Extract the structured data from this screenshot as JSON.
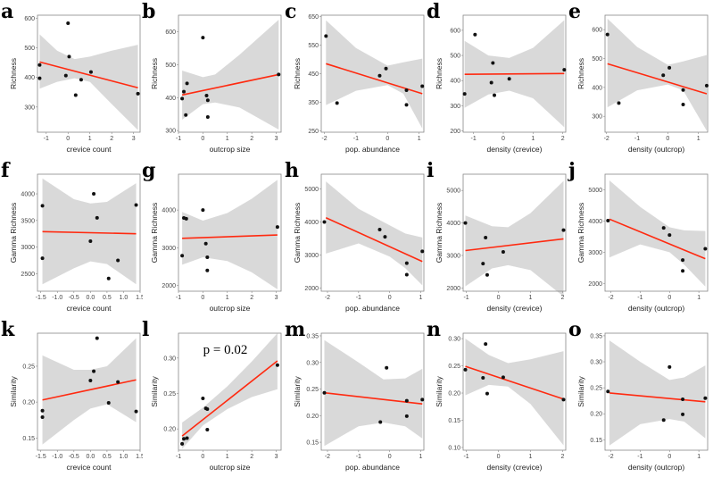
{
  "chart_data": [
    {
      "panel": "a",
      "type": "scatter",
      "xlabel": "crevice count",
      "ylabel": "Richness",
      "xlim": [
        -1.4,
        3.3
      ],
      "ylim": [
        215,
        610
      ],
      "xticks": [
        -1,
        0,
        1,
        2,
        3
      ],
      "yticks": [
        300,
        400,
        500,
        600
      ],
      "points": [
        [
          -1.3,
          442
        ],
        [
          -1.3,
          397
        ],
        [
          0,
          583
        ],
        [
          0.05,
          470
        ],
        [
          -0.1,
          406
        ],
        [
          0.35,
          340
        ],
        [
          0.6,
          392
        ],
        [
          1.05,
          418
        ],
        [
          3.2,
          345
        ]
      ],
      "fit": [
        [
          -1.3,
          452
        ],
        [
          3.2,
          365
        ]
      ],
      "ci": [
        [
          -1.3,
          362,
          545
        ],
        [
          -0.5,
          385,
          490
        ],
        [
          0.3,
          397,
          462
        ],
        [
          1,
          385,
          470
        ],
        [
          2,
          310,
          490
        ],
        [
          3.2,
          222,
          510
        ]
      ]
    },
    {
      "panel": "b",
      "type": "scatter",
      "xlabel": "outcrop size",
      "ylabel": "Richness",
      "xlim": [
        -1,
        3.2
      ],
      "ylim": [
        295,
        650
      ],
      "xticks": [
        -1,
        0,
        1,
        2,
        3
      ],
      "yticks": [
        300,
        400,
        500,
        600
      ],
      "points": [
        [
          -0.85,
          397
        ],
        [
          -0.78,
          418
        ],
        [
          -0.65,
          443
        ],
        [
          -0.7,
          347
        ],
        [
          0,
          582
        ],
        [
          0.15,
          406
        ],
        [
          0.2,
          392
        ],
        [
          0.2,
          341
        ],
        [
          3.1,
          470
        ]
      ],
      "fit": [
        [
          -0.85,
          408
        ],
        [
          3.1,
          470
        ]
      ],
      "ci": [
        [
          -0.85,
          333,
          482
        ],
        [
          0,
          380,
          462
        ],
        [
          0.5,
          385,
          470
        ],
        [
          1.5,
          370,
          530
        ],
        [
          3.1,
          303,
          636
        ]
      ]
    },
    {
      "panel": "c",
      "type": "scatter",
      "xlabel": "pop. abundance",
      "ylabel": "Richness",
      "xlim": [
        -2.1,
        1.15
      ],
      "ylim": [
        245,
        655
      ],
      "xticks": [
        -2,
        -1,
        0,
        1
      ],
      "yticks": [
        250,
        350,
        450,
        550,
        650
      ],
      "points": [
        [
          -1.95,
          582
        ],
        [
          -1.6,
          347
        ],
        [
          -0.25,
          443
        ],
        [
          -0.05,
          468
        ],
        [
          0.6,
          392
        ],
        [
          0.6,
          341
        ],
        [
          1.1,
          406
        ]
      ],
      "fit": [
        [
          -1.95,
          485
        ],
        [
          1.1,
          380
        ]
      ],
      "ci": [
        [
          -1.95,
          340,
          637
        ],
        [
          -1,
          390,
          540
        ],
        [
          0,
          410,
          478
        ],
        [
          0.5,
          380,
          490
        ],
        [
          1.1,
          258,
          503
        ]
      ]
    },
    {
      "panel": "d",
      "type": "scatter",
      "xlabel": "density (crevice)",
      "ylabel": "Richness",
      "xlim": [
        -1.35,
        2.1
      ],
      "ylim": [
        195,
        660
      ],
      "xticks": [
        -1,
        0,
        1,
        2
      ],
      "yticks": [
        200,
        300,
        400,
        500,
        600
      ],
      "points": [
        [
          -1.3,
          347
        ],
        [
          -0.95,
          583
        ],
        [
          -0.35,
          470
        ],
        [
          -0.4,
          392
        ],
        [
          -0.3,
          342
        ],
        [
          0.2,
          407
        ],
        [
          2.05,
          443
        ]
      ],
      "fit": [
        [
          -1.3,
          425
        ],
        [
          2.05,
          428
        ]
      ],
      "ci": [
        [
          -1.3,
          292,
          558
        ],
        [
          -0.5,
          345,
          500
        ],
        [
          0.2,
          360,
          490
        ],
        [
          1,
          330,
          530
        ],
        [
          2.05,
          215,
          640
        ]
      ]
    },
    {
      "panel": "e",
      "type": "scatter",
      "xlabel": "density (outcrop)",
      "ylabel": "Richness",
      "xlim": [
        -2.05,
        1.3
      ],
      "ylim": [
        245,
        650
      ],
      "xticks": [
        -2,
        -1,
        0,
        1
      ],
      "yticks": [
        300,
        400,
        500,
        600
      ],
      "points": [
        [
          -1.97,
          583
        ],
        [
          -1.6,
          346
        ],
        [
          -0.15,
          442
        ],
        [
          0.05,
          468
        ],
        [
          0.5,
          391
        ],
        [
          0.5,
          341
        ],
        [
          1.27,
          406
        ]
      ],
      "fit": [
        [
          -1.97,
          482
        ],
        [
          1.27,
          378
        ]
      ],
      "ci": [
        [
          -1.97,
          331,
          638
        ],
        [
          -1,
          390,
          540
        ],
        [
          0,
          410,
          478
        ],
        [
          0.5,
          390,
          490
        ],
        [
          1.27,
          250,
          512
        ]
      ]
    },
    {
      "panel": "f",
      "type": "scatter",
      "xlabel": "crevice count",
      "ylabel": "Gamma Richness",
      "xlim": [
        -1.6,
        1.5
      ],
      "ylim": [
        2170,
        4370
      ],
      "xticks": [
        -1.5,
        -1.0,
        -0.5,
        0.0,
        0.5,
        1.0,
        1.5
      ],
      "yticks": [
        2500,
        3000,
        3500,
        4000
      ],
      "points": [
        [
          -1.45,
          3775
        ],
        [
          -1.45,
          2790
        ],
        [
          0.1,
          4000
        ],
        [
          0.2,
          3550
        ],
        [
          0,
          3110
        ],
        [
          0.55,
          2410
        ],
        [
          0.83,
          2750
        ],
        [
          1.38,
          3790
        ]
      ],
      "fit": [
        [
          -1.45,
          3290
        ],
        [
          1.38,
          3250
        ]
      ],
      "ci": [
        [
          -1.45,
          2300,
          4290
        ],
        [
          -0.5,
          2600,
          3900
        ],
        [
          0,
          2730,
          3820
        ],
        [
          0.5,
          2680,
          3850
        ],
        [
          1.38,
          2300,
          4200
        ]
      ]
    },
    {
      "panel": "g",
      "type": "scatter",
      "xlabel": "outcrop size",
      "ylabel": "Gamma Richness",
      "xlim": [
        -1,
        3.2
      ],
      "ylim": [
        1850,
        4950
      ],
      "xticks": [
        -1,
        0,
        1,
        2,
        3
      ],
      "yticks": [
        2000,
        3000,
        4000
      ],
      "points": [
        [
          -0.85,
          2790
        ],
        [
          -0.78,
          3790
        ],
        [
          -0.68,
          3770
        ],
        [
          0,
          4000
        ],
        [
          0.12,
          3110
        ],
        [
          0.18,
          2750
        ],
        [
          0.18,
          2400
        ],
        [
          3.05,
          3550
        ]
      ],
      "fit": [
        [
          -0.85,
          3250
        ],
        [
          3.05,
          3340
        ]
      ],
      "ci": [
        [
          -0.85,
          2550,
          3950
        ],
        [
          0,
          2750,
          3720
        ],
        [
          1,
          2650,
          3920
        ],
        [
          2,
          2350,
          4300
        ],
        [
          3.05,
          1900,
          4800
        ]
      ]
    },
    {
      "panel": "h",
      "type": "scatter",
      "xlabel": "pop. abundance",
      "ylabel": "Gamma Richness",
      "xlim": [
        -2.2,
        1.1
      ],
      "ylim": [
        1900,
        5450
      ],
      "xticks": [
        -2,
        -1,
        0,
        1
      ],
      "yticks": [
        2000,
        3000,
        4000,
        5000
      ],
      "points": [
        [
          -2.1,
          4000
        ],
        [
          -0.32,
          3770
        ],
        [
          -0.15,
          3550
        ],
        [
          0.55,
          2750
        ],
        [
          0.55,
          2400
        ],
        [
          1.05,
          3110
        ]
      ],
      "fit": [
        [
          -2.05,
          4130
        ],
        [
          1.05,
          2800
        ]
      ],
      "ci": [
        [
          -2.05,
          3040,
          5230
        ],
        [
          -1,
          3350,
          4400
        ],
        [
          0,
          2950,
          3900
        ],
        [
          0.5,
          2600,
          3650
        ],
        [
          1.05,
          2080,
          3530
        ]
      ]
    },
    {
      "panel": "i",
      "type": "scatter",
      "xlabel": "density (crevice)",
      "ylabel": "Gamma Richness",
      "xlim": [
        -1.1,
        2.1
      ],
      "ylim": [
        1900,
        5500
      ],
      "xticks": [
        -1,
        0,
        1,
        2
      ],
      "yticks": [
        2000,
        3000,
        4000,
        5000
      ],
      "points": [
        [
          -1.03,
          4000
        ],
        [
          -0.48,
          2750
        ],
        [
          -0.4,
          3550
        ],
        [
          -0.35,
          2400
        ],
        [
          0.15,
          3110
        ],
        [
          2.03,
          3780
        ]
      ],
      "fit": [
        [
          -1.03,
          3150
        ],
        [
          2.03,
          3510
        ]
      ],
      "ci": [
        [
          -1.03,
          2050,
          4230
        ],
        [
          -0.2,
          2600,
          3900
        ],
        [
          0.3,
          2700,
          3870
        ],
        [
          1,
          2550,
          4300
        ],
        [
          2.03,
          1740,
          5290
        ]
      ]
    },
    {
      "panel": "j",
      "type": "scatter",
      "xlabel": "density (outcrop)",
      "ylabel": "Gamma Richness",
      "xlim": [
        -2.2,
        1.3
      ],
      "ylim": [
        1750,
        5500
      ],
      "xticks": [
        -2,
        -1,
        0,
        1
      ],
      "yticks": [
        2000,
        3000,
        4000,
        5000
      ],
      "points": [
        [
          -2.1,
          4010
        ],
        [
          -0.2,
          3780
        ],
        [
          0,
          3550
        ],
        [
          0.45,
          2750
        ],
        [
          0.45,
          2400
        ],
        [
          1.22,
          3110
        ]
      ],
      "fit": [
        [
          -2.05,
          4060
        ],
        [
          1.22,
          2790
        ]
      ],
      "ci": [
        [
          -2.05,
          2830,
          5300
        ],
        [
          -1,
          3250,
          4450
        ],
        [
          0,
          3000,
          3800
        ],
        [
          0.5,
          2600,
          3700
        ],
        [
          1.22,
          1900,
          3680
        ]
      ]
    },
    {
      "panel": "k",
      "type": "scatter",
      "xlabel": "crevice count",
      "ylabel": "Similarity",
      "xlim": [
        -1.6,
        1.5
      ],
      "ylim": [
        0.133,
        0.296
      ],
      "xticks": [
        -1.5,
        -1.0,
        -0.5,
        0.0,
        0.5,
        1.0,
        1.5
      ],
      "yticks": [
        0.15,
        0.2,
        0.25
      ],
      "points": [
        [
          -1.45,
          0.188
        ],
        [
          -1.45,
          0.179
        ],
        [
          0.2,
          0.289
        ],
        [
          0.1,
          0.243
        ],
        [
          0,
          0.23
        ],
        [
          0.55,
          0.199
        ],
        [
          0.83,
          0.228
        ],
        [
          1.38,
          0.187
        ]
      ],
      "fit": [
        [
          -1.45,
          0.203
        ],
        [
          1.38,
          0.231
        ]
      ],
      "ci": [
        [
          -1.45,
          0.141,
          0.265
        ],
        [
          -0.5,
          0.175,
          0.245
        ],
        [
          0,
          0.191,
          0.245
        ],
        [
          0.5,
          0.197,
          0.25
        ],
        [
          1.38,
          0.172,
          0.289
        ]
      ]
    },
    {
      "panel": "l",
      "type": "scatter",
      "xlabel": "outcrop size",
      "ylabel": "Similarity",
      "xlim": [
        -1,
        3.2
      ],
      "ylim": [
        0.17,
        0.335
      ],
      "xticks": [
        -1,
        0,
        1,
        2,
        3
      ],
      "yticks": [
        0.2,
        0.25,
        0.3
      ],
      "annotation": "p = 0.02",
      "points": [
        [
          -0.85,
          0.179
        ],
        [
          -0.78,
          0.186
        ],
        [
          -0.65,
          0.187
        ],
        [
          0,
          0.243
        ],
        [
          0.12,
          0.229
        ],
        [
          0.18,
          0.228
        ],
        [
          0.18,
          0.199
        ],
        [
          3.05,
          0.29
        ]
      ],
      "fit": [
        [
          -0.85,
          0.19
        ],
        [
          3.05,
          0.296
        ]
      ],
      "ci": [
        [
          -0.85,
          0.172,
          0.209
        ],
        [
          0,
          0.205,
          0.23
        ],
        [
          1,
          0.228,
          0.26
        ],
        [
          2,
          0.245,
          0.295
        ],
        [
          3.05,
          0.256,
          0.335
        ]
      ]
    },
    {
      "panel": "m",
      "type": "scatter",
      "xlabel": "pop. abundance",
      "ylabel": "Similarity",
      "xlim": [
        -2.2,
        1.1
      ],
      "ylim": [
        0.135,
        0.355
      ],
      "xticks": [
        -2,
        -1,
        0,
        1
      ],
      "yticks": [
        0.15,
        0.2,
        0.25,
        0.3,
        0.35
      ],
      "points": [
        [
          -2.1,
          0.243
        ],
        [
          -0.1,
          0.29
        ],
        [
          -0.3,
          0.188
        ],
        [
          0.55,
          0.228
        ],
        [
          0.55,
          0.199
        ],
        [
          1.05,
          0.23
        ]
      ],
      "fit": [
        [
          -2.1,
          0.243
        ],
        [
          1.05,
          0.222
        ]
      ],
      "ci": [
        [
          -2.1,
          0.143,
          0.342
        ],
        [
          -1,
          0.18,
          0.3
        ],
        [
          -0.2,
          0.187,
          0.268
        ],
        [
          0.5,
          0.18,
          0.27
        ],
        [
          1.05,
          0.157,
          0.288
        ]
      ]
    },
    {
      "panel": "n",
      "type": "scatter",
      "xlabel": "density (crevice)",
      "ylabel": "Similarity",
      "xlim": [
        -1.1,
        2.1
      ],
      "ylim": [
        0.095,
        0.31
      ],
      "xticks": [
        -1,
        0,
        1,
        2
      ],
      "yticks": [
        0.1,
        0.15,
        0.2,
        0.25,
        0.3
      ],
      "points": [
        [
          -1.03,
          0.243
        ],
        [
          -0.4,
          0.29
        ],
        [
          -0.48,
          0.228
        ],
        [
          -0.35,
          0.199
        ],
        [
          0.15,
          0.229
        ],
        [
          2.03,
          0.188
        ]
      ],
      "fit": [
        [
          -1.03,
          0.249
        ],
        [
          2.03,
          0.189
        ]
      ],
      "ci": [
        [
          -1.03,
          0.196,
          0.3
        ],
        [
          -0.3,
          0.215,
          0.27
        ],
        [
          0.3,
          0.212,
          0.255
        ],
        [
          1,
          0.18,
          0.262
        ],
        [
          2.03,
          0.104,
          0.277
        ]
      ]
    },
    {
      "panel": "o",
      "type": "scatter",
      "xlabel": "density (outcrop)",
      "ylabel": "Similarity",
      "xlim": [
        -2.2,
        1.3
      ],
      "ylim": [
        0.13,
        0.355
      ],
      "xticks": [
        -2,
        -1,
        0,
        1
      ],
      "yticks": [
        0.15,
        0.2,
        0.25,
        0.3,
        0.35
      ],
      "points": [
        [
          -2.1,
          0.243
        ],
        [
          0,
          0.29
        ],
        [
          -0.2,
          0.188
        ],
        [
          0.45,
          0.228
        ],
        [
          0.45,
          0.199
        ],
        [
          1.22,
          0.23
        ]
      ],
      "fit": [
        [
          -2.05,
          0.24
        ],
        [
          1.22,
          0.223
        ]
      ],
      "ci": [
        [
          -2.05,
          0.139,
          0.341
        ],
        [
          -1,
          0.18,
          0.3
        ],
        [
          0,
          0.19,
          0.265
        ],
        [
          0.5,
          0.185,
          0.27
        ],
        [
          1.22,
          0.153,
          0.293
        ]
      ]
    }
  ],
  "colors": {
    "fit": "#ff2a10",
    "ci": "#d9d9d9",
    "point": "#111111",
    "axis": "#888888"
  }
}
